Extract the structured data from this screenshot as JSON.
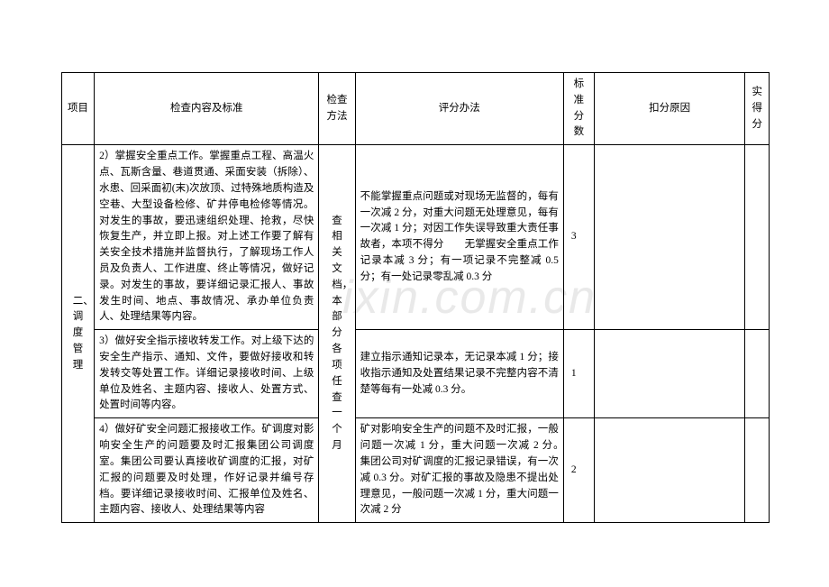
{
  "watermark": "ixin.com.cn",
  "header": {
    "project": "项目",
    "check_content": "检查内容及标准",
    "check_method": "检查方法",
    "scoring": "评分办法",
    "std_score": "标准分数",
    "deduct_reason": "扣分原因",
    "actual_score": "实得分"
  },
  "section": {
    "title": "二、调度管理",
    "method": "查相关文档，本部分各项任查一个月",
    "rows": [
      {
        "content": "2）掌握安全重点工作。掌握重点工程、高温火点、瓦斯含量、巷道贯通、采面安装（拆除）、水患、回采面初(末)次放顶、过特殊地质构造及空巷、大型设备检修、矿井停电检修等情况。对发生的事故，要迅速组织处理、抢救，尽快恢复生产，并立即上报。对上述工作要了解有关安全技术措施并监督执行，了解现场工作人员及负责人、工作进度、终止等情况，做好记录。对发生的事故，要详细记录汇报人、事故发生时间、地点、事故情况、承办单位负责人、处理结果等内容。",
        "scoring": "不能掌握重点问题或对现场无监督的，每有一次减 2 分，对重大问题无处理意见，每有一次减 1 分；对因工作失误导致重大责任事故者，本项不得分　　无掌握安全重点工作记录本减 3 分；有一项记录不完整减 0.5 分；有一处记录零乱减 0.3 分",
        "std": "3"
      },
      {
        "content": "3）做好安全指示接收转发工作。对上级下达的安全生产指示、通知、文件，要做好接收和转发转交等处置工作。详细记录接收时间、上级单位及姓名、主题内容、接收人、处置方式、处置时间等内容。",
        "scoring": "建立指示通知记录本，无记录本减 1 分；接收指示通知及处置结果记录不完整内容不清楚等每有一处减 0.3 分。",
        "std": "1"
      },
      {
        "content": "4）做好矿安全问题汇报接收工作。矿调度对影响安全生产的问题要及时汇报集团公司调度室。集团公司要认真接收矿调度的汇报，对矿汇报的问题要及时处理，作好记录并编号存档。要详细记录接收时间、汇报单位及姓名、主题内容、接收人、处理结果等内容",
        "scoring": "矿对影响安全生产的问题不及时汇报，一般问题一次减 1 分，重大问题一次减 2 分。　集团公司对矿调度的汇报记录错误，有一次减 0.3 分。对矿汇报的事故及隐患不提出处理意见，一般问题一次减 1 分，重大问题一次减 2 分",
        "std": "2"
      }
    ]
  }
}
